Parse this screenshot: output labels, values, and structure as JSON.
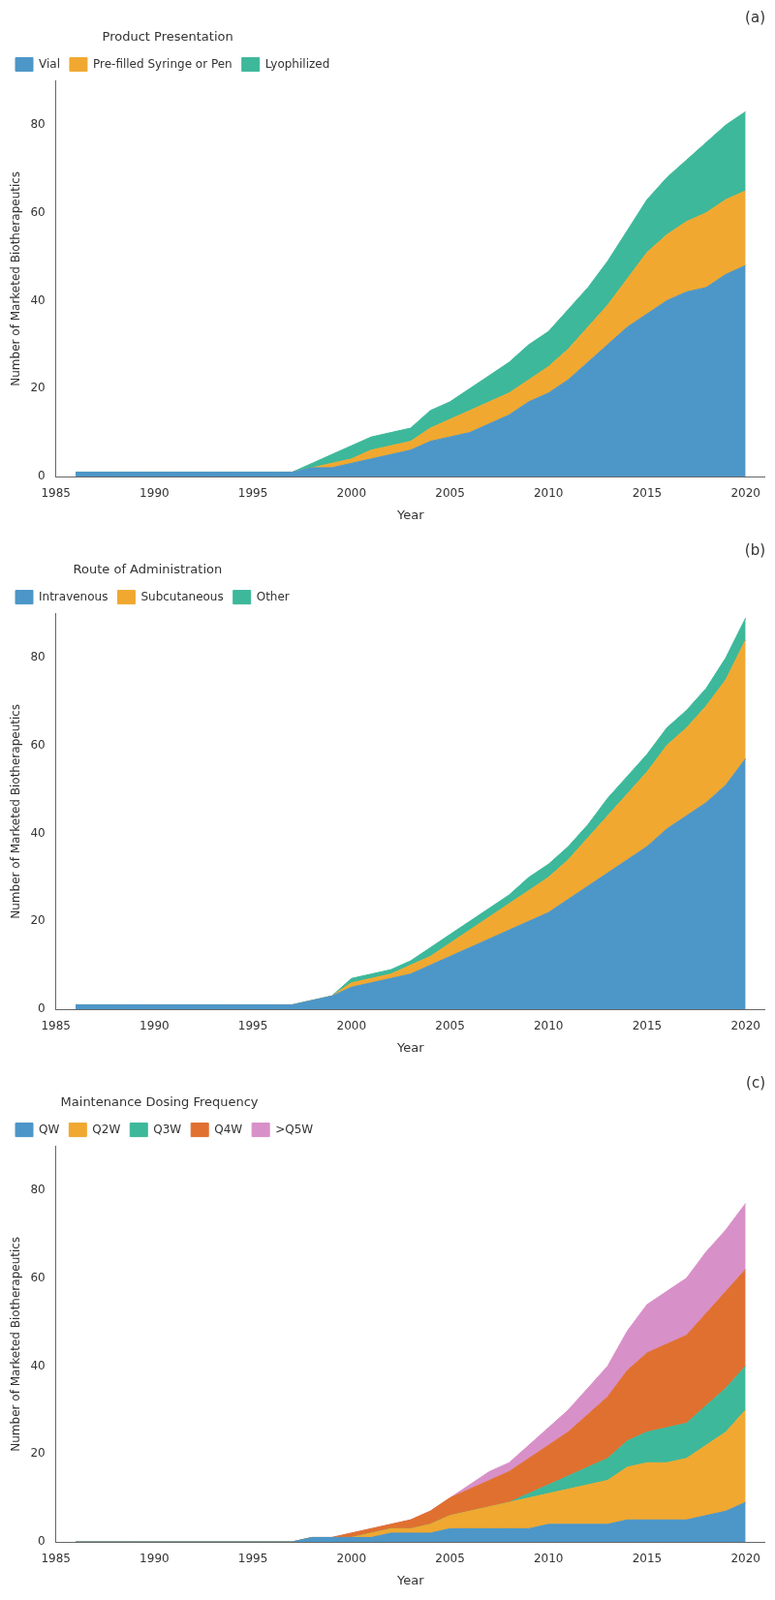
{
  "chart_data": [
    {
      "type": "area",
      "title": "Product Presentation",
      "annotation": "(a)",
      "x": [
        1986,
        1987,
        1988,
        1989,
        1990,
        1991,
        1992,
        1993,
        1994,
        1995,
        1996,
        1997,
        1998,
        1999,
        2000,
        2001,
        2002,
        2003,
        2004,
        2005,
        2006,
        2007,
        2008,
        2009,
        2010,
        2011,
        2012,
        2013,
        2014,
        2015,
        2016,
        2017,
        2018,
        2019,
        2020
      ],
      "series": [
        {
          "name": "Vial",
          "color": "#4c96c8",
          "values": [
            1,
            1,
            1,
            1,
            1,
            1,
            1,
            1,
            1,
            1,
            1,
            1,
            2,
            2,
            3,
            4,
            5,
            6,
            8,
            9,
            10,
            12,
            14,
            17,
            19,
            22,
            26,
            30,
            34,
            37,
            40,
            42,
            43,
            46,
            48
          ]
        },
        {
          "name": "Pre-filled Syringe or Pen",
          "color": "#f0a830",
          "values": [
            0,
            0,
            0,
            0,
            0,
            0,
            0,
            0,
            0,
            0,
            0,
            0,
            0,
            1,
            1,
            2,
            2,
            2,
            3,
            4,
            5,
            5,
            5,
            5,
            6,
            7,
            8,
            9,
            11,
            14,
            15,
            16,
            17,
            17,
            17
          ]
        },
        {
          "name": "Lyophilized",
          "color": "#3db89a",
          "values": [
            0,
            0,
            0,
            0,
            0,
            0,
            0,
            0,
            0,
            0,
            0,
            0,
            1,
            2,
            3,
            3,
            3,
            3,
            4,
            4,
            5,
            6,
            7,
            8,
            8,
            9,
            9,
            10,
            11,
            12,
            13,
            14,
            16,
            17,
            18
          ]
        }
      ],
      "stacked": true,
      "xlim": [
        1985,
        2021
      ],
      "xticks": [
        1985,
        1990,
        1995,
        2000,
        2005,
        2010,
        2015,
        2020
      ],
      "ylim": [
        0,
        90
      ],
      "yticks": [
        0,
        20,
        40,
        60,
        80
      ],
      "xlabel": "Year",
      "ylabel": "Number of Marketed Biotherapeutics",
      "legend": "upper left",
      "grid": false
    },
    {
      "type": "area",
      "title": "Route of Administration",
      "annotation": "(b)",
      "x": [
        1986,
        1987,
        1988,
        1989,
        1990,
        1991,
        1992,
        1993,
        1994,
        1995,
        1996,
        1997,
        1998,
        1999,
        2000,
        2001,
        2002,
        2003,
        2004,
        2005,
        2006,
        2007,
        2008,
        2009,
        2010,
        2011,
        2012,
        2013,
        2014,
        2015,
        2016,
        2017,
        2018,
        2019,
        2020
      ],
      "series": [
        {
          "name": "Intravenous",
          "color": "#4c96c8",
          "values": [
            1,
            1,
            1,
            1,
            1,
            1,
            1,
            1,
            1,
            1,
            1,
            1,
            2,
            3,
            5,
            6,
            7,
            8,
            10,
            12,
            14,
            16,
            18,
            20,
            22,
            25,
            28,
            31,
            34,
            37,
            41,
            44,
            47,
            51,
            57
          ]
        },
        {
          "name": "Subcutaneous",
          "color": "#f0a830",
          "values": [
            0,
            0,
            0,
            0,
            0,
            0,
            0,
            0,
            0,
            0,
            0,
            0,
            0,
            0,
            1,
            1,
            1,
            2,
            2,
            3,
            4,
            5,
            6,
            7,
            8,
            9,
            11,
            13,
            15,
            17,
            19,
            20,
            22,
            24,
            27
          ]
        },
        {
          "name": "Other",
          "color": "#3db89a",
          "values": [
            0,
            0,
            0,
            0,
            0,
            0,
            0,
            0,
            0,
            0,
            0,
            0,
            0,
            0,
            1,
            1,
            1,
            1,
            2,
            2,
            2,
            2,
            2,
            3,
            3,
            3,
            3,
            4,
            4,
            4,
            4,
            4,
            4,
            5,
            5
          ]
        }
      ],
      "stacked": true,
      "xlim": [
        1985,
        2021
      ],
      "xticks": [
        1985,
        1990,
        1995,
        2000,
        2005,
        2010,
        2015,
        2020
      ],
      "ylim": [
        0,
        90
      ],
      "yticks": [
        0,
        20,
        40,
        60,
        80
      ],
      "xlabel": "Year",
      "ylabel": "Number of Marketed Biotherapeutics",
      "legend": "upper left",
      "grid": false
    },
    {
      "type": "area",
      "title": "Maintenance Dosing Frequency",
      "annotation": "(c)",
      "x": [
        1986,
        1987,
        1988,
        1989,
        1990,
        1991,
        1992,
        1993,
        1994,
        1995,
        1996,
        1997,
        1998,
        1999,
        2000,
        2001,
        2002,
        2003,
        2004,
        2005,
        2006,
        2007,
        2008,
        2009,
        2010,
        2011,
        2012,
        2013,
        2014,
        2015,
        2016,
        2017,
        2018,
        2019,
        2020
      ],
      "series": [
        {
          "name": "QW",
          "color": "#4c96c8",
          "values": [
            0,
            0,
            0,
            0,
            0,
            0,
            0,
            0,
            0,
            0,
            0,
            0,
            1,
            1,
            1,
            1,
            2,
            2,
            2,
            3,
            3,
            3,
            3,
            3,
            4,
            4,
            4,
            4,
            5,
            5,
            5,
            5,
            6,
            7,
            9
          ]
        },
        {
          "name": "Q2W",
          "color": "#f0a830",
          "values": [
            0,
            0,
            0,
            0,
            0,
            0,
            0,
            0,
            0,
            0,
            0,
            0,
            0,
            0,
            0,
            1,
            1,
            1,
            2,
            3,
            4,
            5,
            6,
            7,
            7,
            8,
            9,
            10,
            12,
            13,
            13,
            14,
            16,
            18,
            21
          ]
        },
        {
          "name": "Q3W",
          "color": "#3db89a",
          "values": [
            0,
            0,
            0,
            0,
            0,
            0,
            0,
            0,
            0,
            0,
            0,
            0,
            0,
            0,
            0,
            0,
            0,
            0,
            0,
            0,
            0,
            0,
            0,
            1,
            2,
            3,
            4,
            5,
            6,
            7,
            8,
            8,
            9,
            10,
            10
          ]
        },
        {
          "name": "Q4W",
          "color": "#e07030",
          "values": [
            0,
            0,
            0,
            0,
            0,
            0,
            0,
            0,
            0,
            0,
            0,
            0,
            0,
            0,
            1,
            1,
            1,
            2,
            3,
            4,
            5,
            6,
            7,
            8,
            9,
            10,
            12,
            14,
            16,
            18,
            19,
            20,
            21,
            22,
            22
          ]
        },
        {
          "name": ">Q5W",
          "color": "#d890c8",
          "values": [
            0,
            0,
            0,
            0,
            0,
            0,
            0,
            0,
            0,
            0,
            0,
            0,
            0,
            0,
            0,
            0,
            0,
            0,
            0,
            0,
            1,
            2,
            2,
            3,
            4,
            5,
            6,
            7,
            9,
            11,
            12,
            13,
            14,
            14,
            15
          ]
        }
      ],
      "stacked": true,
      "xlim": [
        1985,
        2021
      ],
      "xticks": [
        1985,
        1990,
        1995,
        2000,
        2005,
        2010,
        2015,
        2020
      ],
      "ylim": [
        0,
        90
      ],
      "yticks": [
        0,
        20,
        40,
        60,
        80
      ],
      "xlabel": "Year",
      "ylabel": "Number of Marketed Biotherapeutics",
      "legend": "upper left",
      "grid": false
    }
  ]
}
